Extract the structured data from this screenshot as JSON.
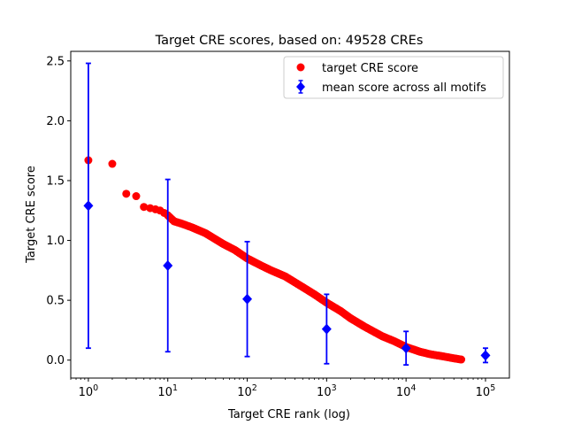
{
  "chart_data": {
    "type": "scatter",
    "title": "Target CRE scores, based on: 49528 CREs",
    "xlabel": "Target CRE rank (log)",
    "ylabel": "Target CRE score",
    "xscale": "log",
    "xlim": [
      0.6,
      200000
    ],
    "ylim": [
      -0.15,
      2.58
    ],
    "x_ticks": [
      {
        "value": 1,
        "base": "10",
        "exp": "0"
      },
      {
        "value": 10,
        "base": "10",
        "exp": "1"
      },
      {
        "value": 100,
        "base": "10",
        "exp": "2"
      },
      {
        "value": 1000,
        "base": "10",
        "exp": "3"
      },
      {
        "value": 10000,
        "base": "10",
        "exp": "4"
      },
      {
        "value": 100000,
        "base": "10",
        "exp": "5"
      }
    ],
    "y_ticks": [
      0.0,
      0.5,
      1.0,
      1.5,
      2.0,
      2.5
    ],
    "y_tick_labels": [
      "0.0",
      "0.5",
      "1.0",
      "1.5",
      "2.0",
      "2.5"
    ],
    "grid": false,
    "legend_position": "top-right",
    "series": [
      {
        "name": "target CRE score",
        "kind": "scatter",
        "color": "#ff0000",
        "marker": "circle",
        "points": [
          [
            1,
            1.67
          ],
          [
            2,
            1.64
          ],
          [
            3,
            1.39
          ],
          [
            4,
            1.37
          ],
          [
            5,
            1.28
          ],
          [
            6,
            1.27
          ],
          [
            7,
            1.26
          ],
          [
            8,
            1.25
          ],
          [
            9,
            1.23
          ],
          [
            10,
            1.21
          ],
          [
            12,
            1.16
          ],
          [
            15,
            1.14
          ],
          [
            20,
            1.11
          ],
          [
            30,
            1.06
          ],
          [
            50,
            0.97
          ],
          [
            70,
            0.92
          ],
          [
            100,
            0.85
          ],
          [
            150,
            0.79
          ],
          [
            200,
            0.75
          ],
          [
            300,
            0.7
          ],
          [
            500,
            0.61
          ],
          [
            700,
            0.55
          ],
          [
            1000,
            0.48
          ],
          [
            1500,
            0.41
          ],
          [
            2000,
            0.35
          ],
          [
            3000,
            0.28
          ],
          [
            5000,
            0.2
          ],
          [
            7000,
            0.16
          ],
          [
            10000,
            0.11
          ],
          [
            15000,
            0.07
          ],
          [
            20000,
            0.05
          ],
          [
            30000,
            0.03
          ],
          [
            40000,
            0.015
          ],
          [
            49528,
            0.005
          ]
        ]
      },
      {
        "name": "mean score across all motifs",
        "kind": "errorbar",
        "color": "#0000ff",
        "marker": "diamond",
        "points": [
          {
            "x": 1,
            "y": 1.29,
            "err": 1.19
          },
          {
            "x": 10,
            "y": 0.79,
            "err": 0.72
          },
          {
            "x": 100,
            "y": 0.51,
            "err": 0.48
          },
          {
            "x": 1000,
            "y": 0.26,
            "err": 0.29
          },
          {
            "x": 10000,
            "y": 0.1,
            "err": 0.14
          },
          {
            "x": 100000,
            "y": 0.04,
            "err": 0.06
          }
        ]
      }
    ]
  }
}
